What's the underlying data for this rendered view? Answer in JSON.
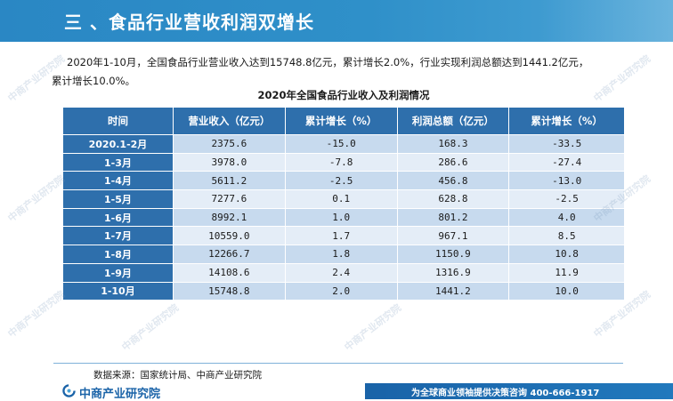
{
  "header": {
    "title": "三 、食品行业营收利润双增长"
  },
  "intro": {
    "line1": "2020年1-10月，全国食品行业营业收入达到15748.8亿元，累计增长2.0%，行业实现利润总额达到1441.2亿元，",
    "line2": "累计增长10.0%。"
  },
  "table": {
    "title": "2020年全国食品行业收入及利润情况",
    "columns": [
      "时间",
      "营业收入（亿元）",
      "累计增长（%）",
      "利润总额（亿元）",
      "累计增长（%）"
    ],
    "rows": [
      [
        "2020.1-2月",
        "2375.6",
        "-15.0",
        "168.3",
        "-33.5"
      ],
      [
        "1-3月",
        "3978.0",
        "-7.8",
        "286.6",
        "-27.4"
      ],
      [
        "1-4月",
        "5611.2",
        "-2.5",
        "456.8",
        "-13.0"
      ],
      [
        "1-5月",
        "7277.6",
        "0.1",
        "628.8",
        "-2.5"
      ],
      [
        "1-6月",
        "8992.1",
        "1.0",
        "801.2",
        "4.0"
      ],
      [
        "1-7月",
        "10559.0",
        "1.7",
        "967.1",
        "8.5"
      ],
      [
        "1-8月",
        "12266.7",
        "1.8",
        "1150.9",
        "10.8"
      ],
      [
        "1-9月",
        "14108.6",
        "2.4",
        "1316.9",
        "11.9"
      ],
      [
        "1-10月",
        "15748.8",
        "2.0",
        "1441.2",
        "10.0"
      ]
    ]
  },
  "source": "数据来源：国家统计局、中商产业研究院",
  "footer": {
    "logo_text": "中商产业研究院",
    "tagline": "为全球商业领袖提供决策咨询   400-666-1917"
  },
  "watermark": "中商产业研究院",
  "colors": {
    "header": "#2f90c9",
    "table_header": "#2e6fac",
    "row_odd": "#c7daee",
    "row_even": "#e4edf7",
    "footer_blue": "#1a63a8"
  }
}
